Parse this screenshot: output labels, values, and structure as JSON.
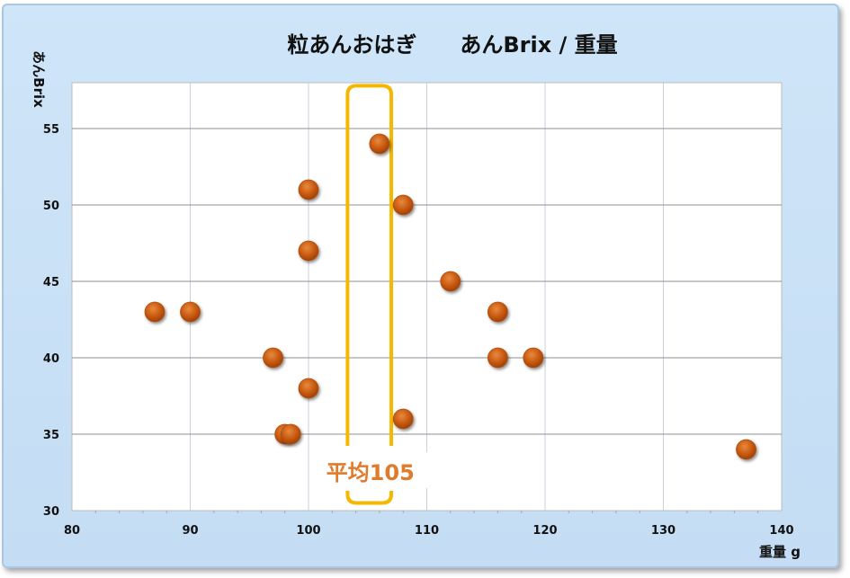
{
  "chart_data": {
    "type": "scatter",
    "title": "粒あんおはぎ　　あんBrix / 重量",
    "xlabel": "重量 g",
    "ylabel": "あんBrix",
    "xlim": [
      80,
      140
    ],
    "ylim": [
      30,
      58
    ],
    "x_ticks": [
      80,
      90,
      100,
      110,
      120,
      130,
      140
    ],
    "y_ticks": [
      30,
      35,
      40,
      45,
      50,
      55
    ],
    "grid": true,
    "marker_color": "#c85a10",
    "points": [
      {
        "x": 87,
        "y": 43
      },
      {
        "x": 90,
        "y": 43
      },
      {
        "x": 97,
        "y": 40
      },
      {
        "x": 98,
        "y": 35
      },
      {
        "x": 98.5,
        "y": 35
      },
      {
        "x": 100,
        "y": 51
      },
      {
        "x": 100,
        "y": 47
      },
      {
        "x": 100,
        "y": 38
      },
      {
        "x": 106,
        "y": 54
      },
      {
        "x": 108,
        "y": 50
      },
      {
        "x": 108,
        "y": 36
      },
      {
        "x": 112,
        "y": 45
      },
      {
        "x": 116,
        "y": 43
      },
      {
        "x": 116,
        "y": 40
      },
      {
        "x": 119,
        "y": 40
      },
      {
        "x": 137,
        "y": 34
      }
    ],
    "annotation": {
      "label": "平均105",
      "x_center": 105,
      "x_range": [
        103.3,
        107
      ],
      "y_range": [
        30.5,
        57.8
      ],
      "color": "#f5b800"
    }
  }
}
